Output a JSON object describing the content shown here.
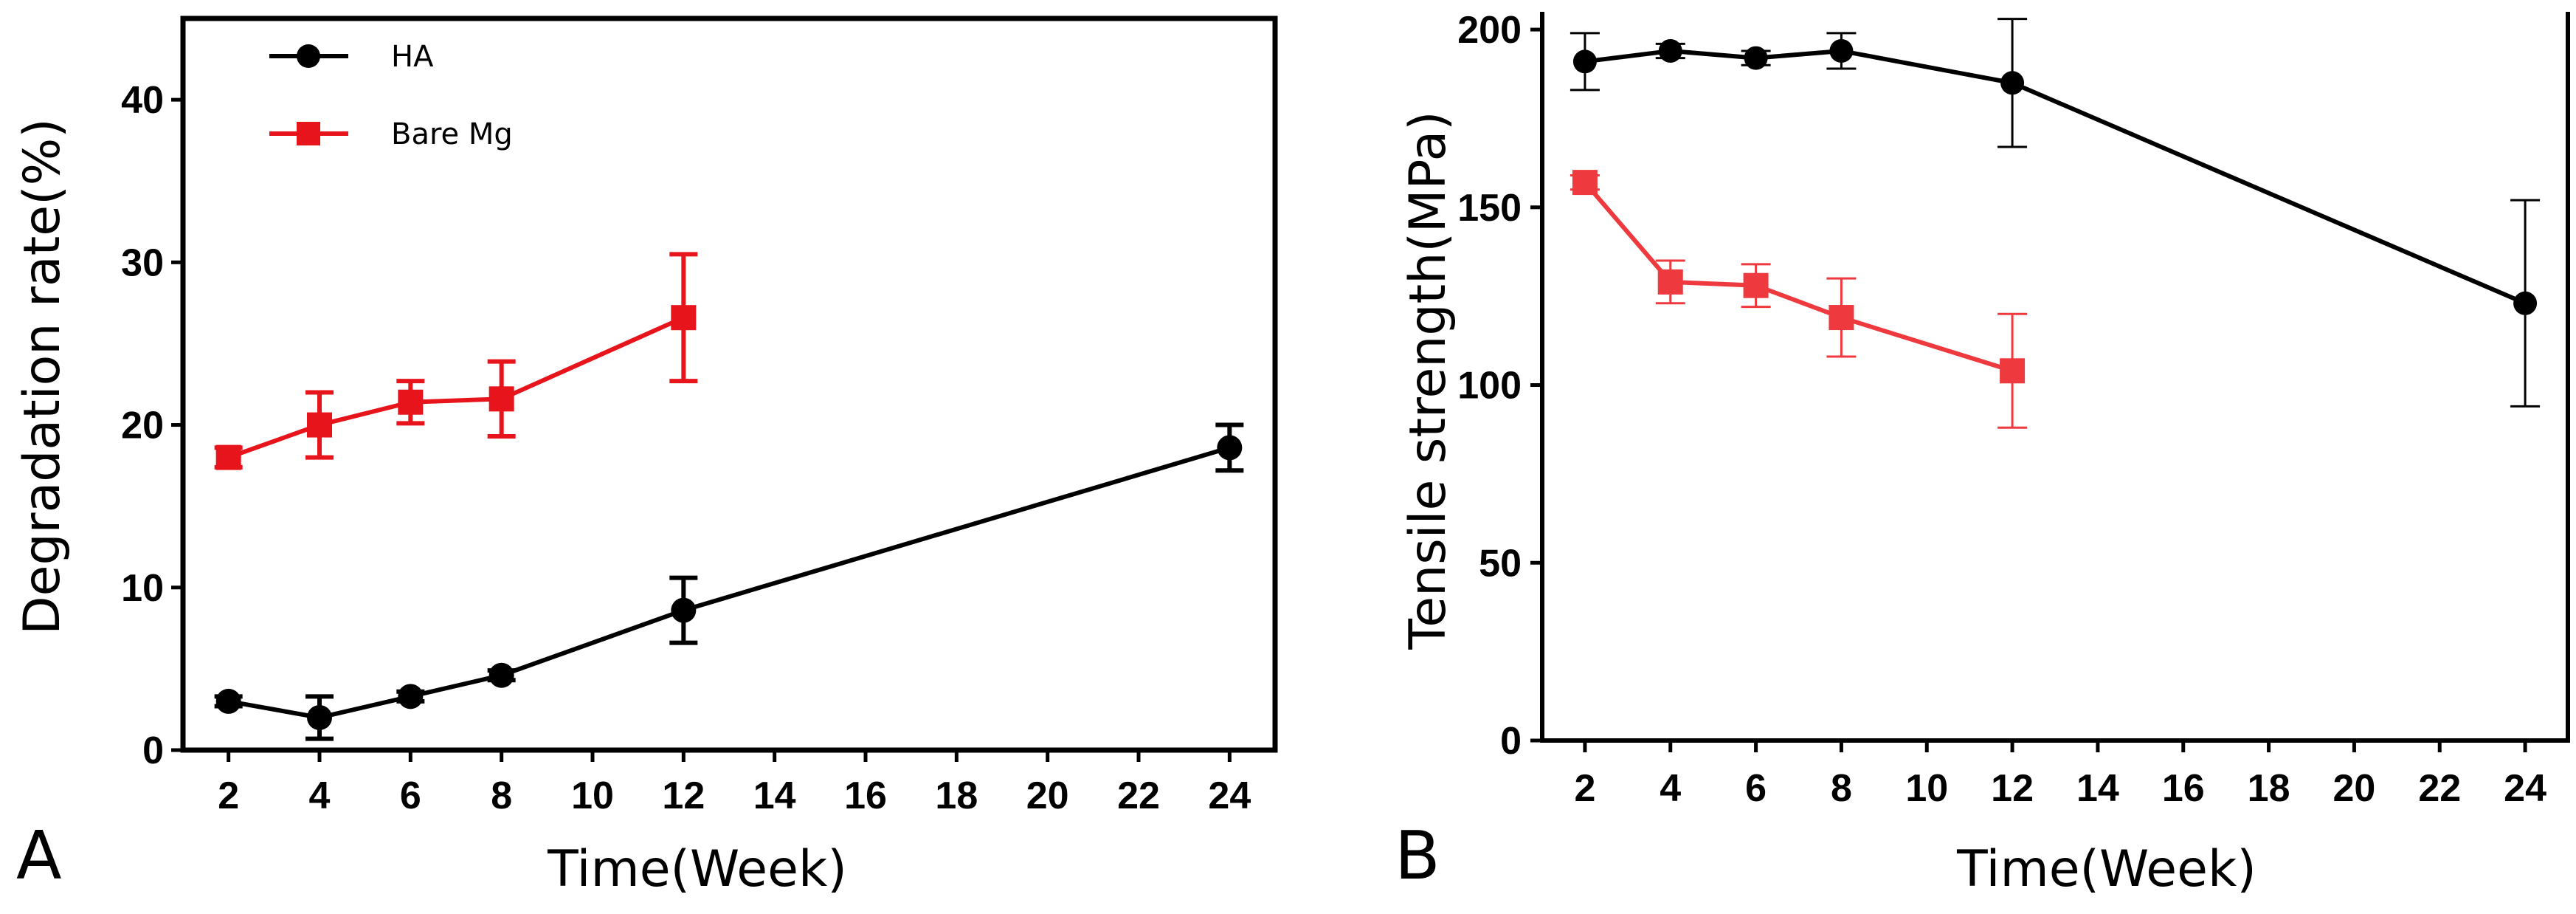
{
  "chart_data": [
    {
      "type": "line",
      "panel_label": "A",
      "xlabel": "Time(Week)",
      "ylabel": "Degradation rate(%)",
      "xlim": [
        1,
        25
      ],
      "ylim": [
        0,
        45
      ],
      "xticks": [
        2,
        4,
        6,
        8,
        10,
        12,
        14,
        16,
        18,
        20,
        22,
        24
      ],
      "yticks": [
        0,
        10,
        20,
        30,
        40
      ],
      "legend_position": "top-left",
      "series": [
        {
          "name": "HA",
          "color": "#000000",
          "marker": "circle",
          "x": [
            2,
            4,
            6,
            8,
            12,
            24
          ],
          "y": [
            3.0,
            2.0,
            3.3,
            4.6,
            8.6,
            18.6
          ],
          "err": [
            0.3,
            1.3,
            0.3,
            0.3,
            2.0,
            1.4
          ]
        },
        {
          "name": "Bare Mg",
          "color": "#e8141c",
          "marker": "square",
          "x": [
            2,
            4,
            6,
            8,
            12
          ],
          "y": [
            18.0,
            20.0,
            21.4,
            21.6,
            26.6
          ],
          "err": [
            0.6,
            2.0,
            1.3,
            2.3,
            3.9
          ]
        }
      ]
    },
    {
      "type": "line",
      "panel_label": "B",
      "xlabel": "Time(Week)",
      "ylabel": "Tensile strength(MPa)",
      "xlim": [
        1,
        25
      ],
      "ylim": [
        0,
        205
      ],
      "xticks": [
        2,
        4,
        6,
        8,
        10,
        12,
        14,
        16,
        18,
        20,
        22,
        24
      ],
      "yticks": [
        0,
        50,
        100,
        150,
        200
      ],
      "series": [
        {
          "name": "HA",
          "color": "#000000",
          "marker": "circle",
          "x": [
            2,
            4,
            6,
            8,
            12,
            24
          ],
          "y": [
            191,
            194,
            192,
            194,
            185,
            123
          ],
          "err": [
            8,
            2,
            2,
            5,
            18,
            29
          ]
        },
        {
          "name": "Bare Mg",
          "color": "#ee3a3e",
          "marker": "square",
          "x": [
            2,
            4,
            6,
            8,
            12
          ],
          "y": [
            157,
            129,
            128,
            119,
            104
          ],
          "err": [
            2,
            6,
            6,
            11,
            16
          ]
        }
      ]
    }
  ]
}
